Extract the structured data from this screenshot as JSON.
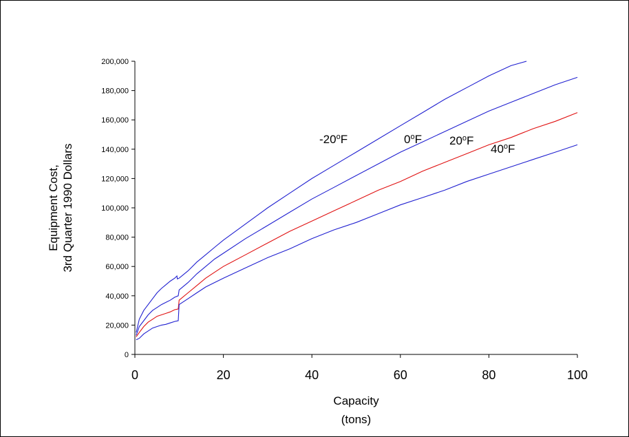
{
  "chart_data": {
    "type": "line",
    "xlabel": [
      "Capacity",
      "(tons)"
    ],
    "ylabel": [
      "Equipment Cost,",
      "3rd Quarter 1990 Dollars"
    ],
    "xlim": [
      0,
      100
    ],
    "ylim": [
      0,
      200000
    ],
    "xticks": [
      0,
      20,
      40,
      60,
      80,
      100
    ],
    "xtick_labels": [
      "0",
      "20",
      "40",
      "60",
      "80",
      "100"
    ],
    "yticks": [
      0,
      20000,
      40000,
      60000,
      80000,
      100000,
      120000,
      140000,
      160000,
      180000,
      200000
    ],
    "ytick_labels": [
      "0",
      "20,000",
      "40,000",
      "60,000",
      "80,000",
      "100,000",
      "120,000",
      "140,000",
      "160,000",
      "180,000",
      "200,000"
    ],
    "grid": false,
    "series": [
      {
        "name": "-20°F",
        "label_parts": [
          "-20",
          "o",
          "F"
        ],
        "color": "#1f1fd0",
        "points": [
          [
            0.3,
            15000
          ],
          [
            1,
            24000
          ],
          [
            2,
            30000
          ],
          [
            3,
            34000
          ],
          [
            4,
            38000
          ],
          [
            5,
            42000
          ],
          [
            6,
            45000
          ],
          [
            7,
            47500
          ],
          [
            8,
            50000
          ],
          [
            9,
            52000
          ],
          [
            9.5,
            53500
          ],
          [
            9.6,
            51500
          ],
          [
            10,
            52000
          ],
          [
            12,
            57000
          ],
          [
            14,
            63000
          ],
          [
            16,
            68000
          ],
          [
            18,
            73000
          ],
          [
            20,
            78000
          ],
          [
            25,
            89000
          ],
          [
            30,
            100000
          ],
          [
            35,
            110000
          ],
          [
            40,
            120000
          ],
          [
            45,
            129000
          ],
          [
            50,
            138000
          ],
          [
            55,
            147000
          ],
          [
            60,
            156000
          ],
          [
            65,
            165000
          ],
          [
            70,
            174000
          ],
          [
            75,
            182000
          ],
          [
            80,
            190000
          ],
          [
            85,
            197000
          ],
          [
            88.5,
            200000
          ]
        ]
      },
      {
        "name": "0°F",
        "label_parts": [
          "0",
          "o",
          "F"
        ],
        "color": "#1f1fd0",
        "points": [
          [
            0.3,
            13000
          ],
          [
            1,
            19000
          ],
          [
            2,
            23000
          ],
          [
            3,
            27000
          ],
          [
            4,
            30000
          ],
          [
            5,
            32000
          ],
          [
            6,
            34000
          ],
          [
            7,
            35500
          ],
          [
            8,
            37000
          ],
          [
            9,
            39000
          ],
          [
            9.8,
            40000
          ],
          [
            10,
            44000
          ],
          [
            12,
            49000
          ],
          [
            14,
            55000
          ],
          [
            16,
            60000
          ],
          [
            18,
            65000
          ],
          [
            20,
            69000
          ],
          [
            25,
            79000
          ],
          [
            30,
            88000
          ],
          [
            35,
            97000
          ],
          [
            40,
            106000
          ],
          [
            45,
            114000
          ],
          [
            50,
            122000
          ],
          [
            55,
            130000
          ],
          [
            60,
            138000
          ],
          [
            65,
            145000
          ],
          [
            70,
            152000
          ],
          [
            75,
            159000
          ],
          [
            80,
            166000
          ],
          [
            85,
            172000
          ],
          [
            90,
            178000
          ],
          [
            95,
            184000
          ],
          [
            100,
            189000
          ]
        ]
      },
      {
        "name": "20°F",
        "label_parts": [
          "20",
          "o",
          "F"
        ],
        "color": "#e01010",
        "points": [
          [
            0.3,
            12000
          ],
          [
            1,
            15000
          ],
          [
            2,
            19000
          ],
          [
            3,
            22000
          ],
          [
            4,
            24000
          ],
          [
            5,
            26000
          ],
          [
            6,
            27000
          ],
          [
            7,
            28000
          ],
          [
            8,
            29000
          ],
          [
            9,
            30500
          ],
          [
            9.8,
            31000
          ],
          [
            10,
            37000
          ],
          [
            12,
            42000
          ],
          [
            14,
            47000
          ],
          [
            16,
            52000
          ],
          [
            18,
            56000
          ],
          [
            20,
            60000
          ],
          [
            25,
            68000
          ],
          [
            30,
            76000
          ],
          [
            35,
            84000
          ],
          [
            40,
            91000
          ],
          [
            45,
            98000
          ],
          [
            50,
            105000
          ],
          [
            55,
            112000
          ],
          [
            60,
            118000
          ],
          [
            65,
            125000
          ],
          [
            70,
            131000
          ],
          [
            75,
            137000
          ],
          [
            80,
            143000
          ],
          [
            85,
            148000
          ],
          [
            90,
            154000
          ],
          [
            95,
            159000
          ],
          [
            100,
            165000
          ]
        ]
      },
      {
        "name": "40°F",
        "label_parts": [
          "40",
          "o",
          "F"
        ],
        "color": "#1f1fd0",
        "points": [
          [
            0.3,
            10000
          ],
          [
            1,
            11000
          ],
          [
            2,
            14000
          ],
          [
            3,
            16000
          ],
          [
            4,
            18000
          ],
          [
            5,
            19000
          ],
          [
            6,
            20000
          ],
          [
            7,
            20500
          ],
          [
            8,
            21500
          ],
          [
            9,
            22500
          ],
          [
            9.8,
            23000
          ],
          [
            10,
            34000
          ],
          [
            12,
            38000
          ],
          [
            14,
            42000
          ],
          [
            16,
            46000
          ],
          [
            18,
            49000
          ],
          [
            20,
            52000
          ],
          [
            25,
            59000
          ],
          [
            30,
            66000
          ],
          [
            35,
            72000
          ],
          [
            40,
            79000
          ],
          [
            45,
            85000
          ],
          [
            50,
            90000
          ],
          [
            55,
            96000
          ],
          [
            60,
            102000
          ],
          [
            65,
            107000
          ],
          [
            70,
            112000
          ],
          [
            75,
            118000
          ],
          [
            80,
            123000
          ],
          [
            85,
            128000
          ],
          [
            90,
            133000
          ],
          [
            95,
            138000
          ],
          [
            100,
            143000
          ]
        ]
      }
    ]
  }
}
